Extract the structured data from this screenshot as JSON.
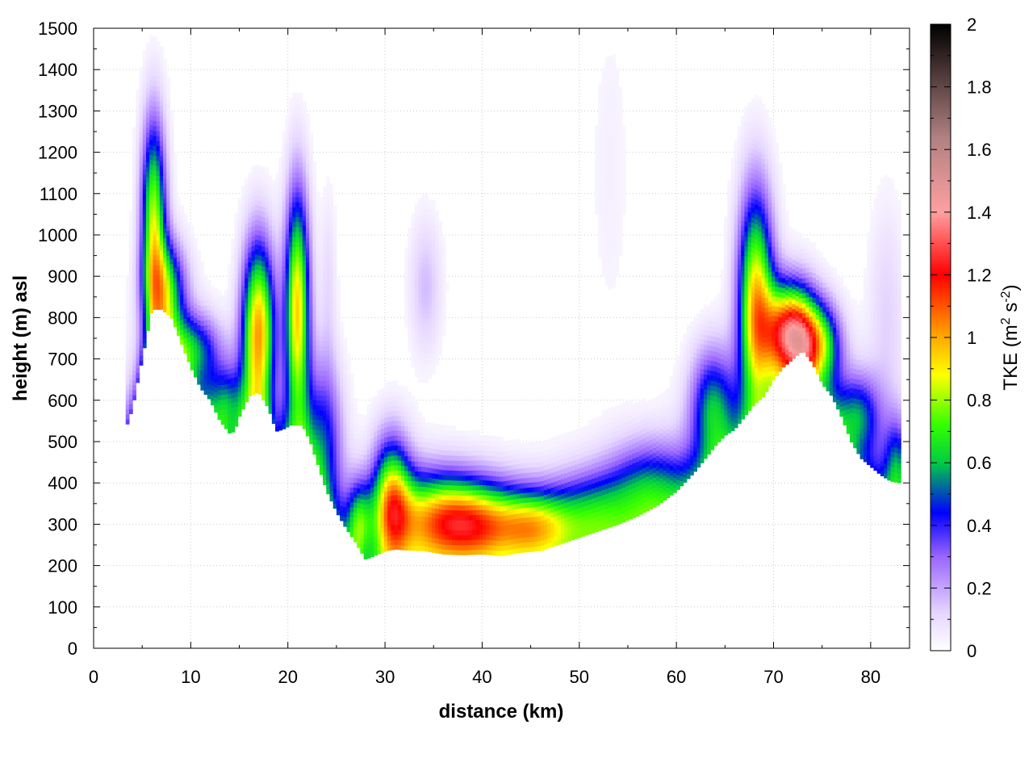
{
  "chart_data": {
    "type": "heatmap",
    "title": "",
    "xlabel": "distance (km)",
    "ylabel": "height (m) asl",
    "xlim": [
      0,
      84
    ],
    "ylim": [
      0,
      1500
    ],
    "x_ticks": [
      0,
      10,
      20,
      30,
      40,
      50,
      60,
      70,
      80
    ],
    "y_ticks": [
      0,
      100,
      200,
      300,
      400,
      500,
      600,
      700,
      800,
      900,
      1000,
      1100,
      1200,
      1300,
      1400,
      1500
    ],
    "grid": true,
    "colorbar": {
      "label": "TKE",
      "unit_prefix": "(m",
      "unit_exp1": "2",
      "unit_mid": " s",
      "unit_exp2": "-2",
      "unit_suffix": ")",
      "range": [
        0,
        2
      ],
      "ticks": [
        "0",
        "0.2",
        "0.4",
        "0.6",
        "0.8",
        "1",
        "1.2",
        "1.4",
        "1.6",
        "1.8",
        "2"
      ],
      "colors": [
        [
          0.0,
          "#ffffff"
        ],
        [
          0.06,
          "#e6d6ff"
        ],
        [
          0.15,
          "#9966ff"
        ],
        [
          0.22,
          "#0000ff"
        ],
        [
          0.3,
          "#00cc44"
        ],
        [
          0.36,
          "#33ff00"
        ],
        [
          0.44,
          "#ffff00"
        ],
        [
          0.5,
          "#ffaa00"
        ],
        [
          0.6,
          "#ff0000"
        ],
        [
          0.7,
          "#ffa0a0"
        ],
        [
          0.82,
          "#b08080"
        ],
        [
          1.0,
          "#000000"
        ]
      ]
    },
    "terrain": {
      "x": [
        3.3,
        4.0,
        5.0,
        6.0,
        7.0,
        8.0,
        9.0,
        10.0,
        11.0,
        12.0,
        13.0,
        14.0,
        14.5,
        15.0,
        16.0,
        17.0,
        18.0,
        18.8,
        19.5,
        20.3,
        21.5,
        22.3,
        23.0,
        24.0,
        25.0,
        26.0,
        27.0,
        28.0,
        29.0,
        30.0,
        31.0,
        32.0,
        34.0,
        36.0,
        38.0,
        40.0,
        42.0,
        44.0,
        46.0,
        48.0,
        50.0,
        52.0,
        54.0,
        56.0,
        58.0,
        60.0,
        62.0,
        64.0,
        65.0,
        66.0,
        67.0,
        68.0,
        69.0,
        70.0,
        71.0,
        72.0,
        73.0,
        74.0,
        75.0,
        76.0,
        77.0,
        78.0,
        79.0,
        80.0,
        81.0,
        82.0,
        83.0
      ],
      "y": [
        530,
        580,
        700,
        820,
        820,
        800,
        740,
        680,
        630,
        600,
        550,
        520,
        525,
        560,
        610,
        620,
        580,
        525,
        530,
        540,
        540,
        500,
        450,
        380,
        330,
        290,
        255,
        215,
        225,
        235,
        240,
        238,
        236,
        228,
        226,
        228,
        224,
        232,
        236,
        252,
        268,
        284,
        300,
        320,
        345,
        380,
        430,
        490,
        515,
        530,
        560,
        590,
        610,
        650,
        680,
        700,
        720,
        690,
        640,
        610,
        560,
        500,
        460,
        440,
        420,
        405,
        400
      ]
    },
    "tke_features": [
      {
        "x": 6.0,
        "z": 1040,
        "sx": 0.9,
        "sz": 170,
        "v": 0.78
      },
      {
        "x": 7.2,
        "z": 870,
        "sx": 1.5,
        "sz": 80,
        "v": 0.55
      },
      {
        "x": 10.0,
        "z": 720,
        "sx": 2.0,
        "sz": 60,
        "v": 0.45
      },
      {
        "x": 13.5,
        "z": 580,
        "sx": 1.3,
        "sz": 70,
        "v": 0.42
      },
      {
        "x": 16.8,
        "z": 770,
        "sx": 1.2,
        "sz": 150,
        "v": 0.95
      },
      {
        "x": 20.8,
        "z": 820,
        "sx": 0.9,
        "sz": 200,
        "v": 0.92
      },
      {
        "x": 23.5,
        "z": 500,
        "sx": 1.4,
        "sz": 140,
        "v": 0.4
      },
      {
        "x": 27.2,
        "z": 300,
        "sx": 0.9,
        "sz": 70,
        "v": 0.5
      },
      {
        "x": 30.5,
        "z": 350,
        "sx": 1.4,
        "sz": 110,
        "v": 0.78
      },
      {
        "x": 35.0,
        "z": 310,
        "sx": 3.5,
        "sz": 80,
        "v": 0.72
      },
      {
        "x": 40.0,
        "z": 295,
        "sx": 3.5,
        "sz": 70,
        "v": 0.7
      },
      {
        "x": 45.5,
        "z": 290,
        "sx": 2.5,
        "sz": 60,
        "v": 0.55
      },
      {
        "x": 51.0,
        "z": 320,
        "sx": 3.0,
        "sz": 70,
        "v": 0.42
      },
      {
        "x": 57.0,
        "z": 380,
        "sx": 3.0,
        "sz": 80,
        "v": 0.42
      },
      {
        "x": 63.5,
        "z": 580,
        "sx": 1.6,
        "sz": 100,
        "v": 0.5
      },
      {
        "x": 68.0,
        "z": 830,
        "sx": 1.3,
        "sz": 190,
        "v": 0.92
      },
      {
        "x": 71.5,
        "z": 760,
        "sx": 1.8,
        "sz": 80,
        "v": 1.15
      },
      {
        "x": 74.5,
        "z": 730,
        "sx": 1.6,
        "sz": 70,
        "v": 0.62
      },
      {
        "x": 78.5,
        "z": 560,
        "sx": 1.6,
        "sz": 70,
        "v": 0.45
      },
      {
        "x": 82.5,
        "z": 440,
        "sx": 0.9,
        "sz": 80,
        "v": 0.35
      },
      {
        "x": 34.0,
        "z": 870,
        "sx": 1.2,
        "sz": 120,
        "v": 0.16
      },
      {
        "x": 24.0,
        "z": 880,
        "sx": 0.6,
        "sz": 160,
        "v": 0.1
      },
      {
        "x": 53.0,
        "z": 1150,
        "sx": 1.5,
        "sz": 280,
        "v": 0.05
      },
      {
        "x": 81.5,
        "z": 800,
        "sx": 1.4,
        "sz": 200,
        "v": 0.12
      }
    ]
  }
}
